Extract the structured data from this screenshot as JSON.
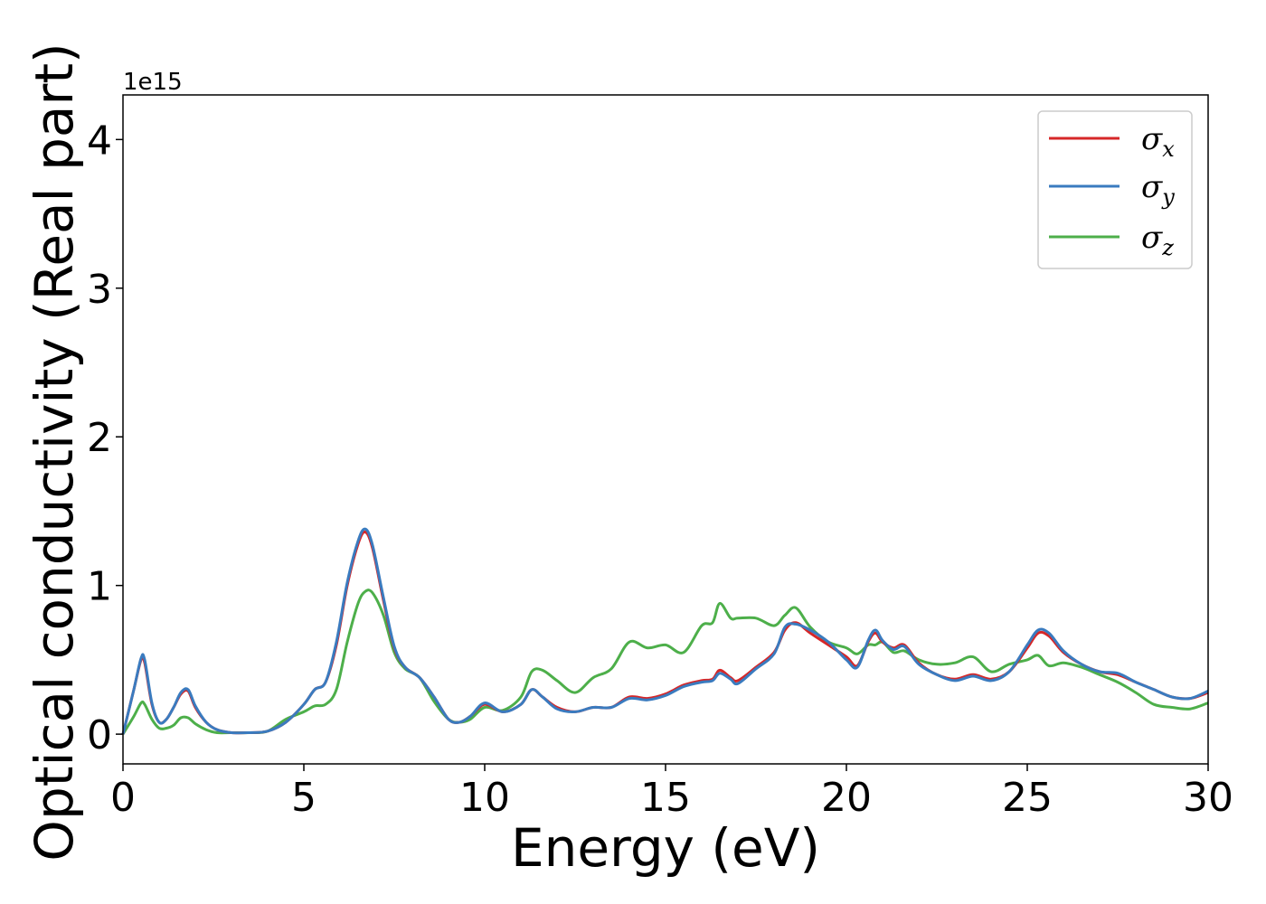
{
  "chart_data": {
    "type": "line",
    "title": "",
    "xlabel": "Energy (eV)",
    "ylabel": "Optical conductivity (Real part)",
    "y_offset_label": "1e15",
    "xlim": [
      0,
      30
    ],
    "ylim": [
      -0.2,
      4.3
    ],
    "x_ticks": [
      0,
      5,
      10,
      15,
      20,
      25,
      30
    ],
    "y_ticks": [
      0,
      1,
      2,
      3,
      4
    ],
    "grid": false,
    "legend_position": "top-right",
    "colors": {
      "sigma_x": "#d62728",
      "sigma_y": "#3a7bbf",
      "sigma_z": "#4daf4a"
    },
    "legend": [
      {
        "symbol": "σ",
        "sub": "x"
      },
      {
        "symbol": "σ",
        "sub": "y"
      },
      {
        "symbol": "σ",
        "sub": "z"
      }
    ],
    "x": [
      0,
      0.3,
      0.5,
      0.6,
      0.8,
      1.0,
      1.2,
      1.4,
      1.6,
      1.8,
      2.0,
      2.3,
      2.6,
      3.0,
      3.5,
      4.0,
      4.5,
      5.0,
      5.3,
      5.6,
      5.9,
      6.2,
      6.5,
      6.7,
      6.9,
      7.2,
      7.5,
      7.8,
      8.2,
      8.6,
      9.0,
      9.3,
      9.6,
      10.0,
      10.5,
      11.0,
      11.3,
      11.6,
      12.0,
      12.5,
      13.0,
      13.5,
      14.0,
      14.5,
      15.0,
      15.5,
      16.0,
      16.3,
      16.5,
      16.8,
      17.0,
      17.5,
      18.0,
      18.3,
      18.6,
      19.0,
      19.5,
      20.0,
      20.3,
      20.6,
      20.8,
      21.0,
      21.3,
      21.6,
      22.0,
      22.5,
      23.0,
      23.5,
      24.0,
      24.5,
      25.0,
      25.3,
      25.6,
      26.0,
      26.5,
      27.0,
      27.5,
      28.0,
      28.5,
      29.0,
      29.5,
      30.0
    ],
    "series": [
      {
        "key": "sigma_x",
        "values": [
          0,
          0.3,
          0.5,
          0.48,
          0.2,
          0.08,
          0.1,
          0.18,
          0.27,
          0.29,
          0.18,
          0.08,
          0.03,
          0.01,
          0.01,
          0.02,
          0.08,
          0.2,
          0.3,
          0.35,
          0.6,
          1.0,
          1.28,
          1.36,
          1.25,
          0.9,
          0.58,
          0.45,
          0.38,
          0.25,
          0.1,
          0.08,
          0.12,
          0.2,
          0.15,
          0.2,
          0.3,
          0.25,
          0.18,
          0.15,
          0.18,
          0.18,
          0.25,
          0.24,
          0.27,
          0.33,
          0.36,
          0.37,
          0.43,
          0.38,
          0.36,
          0.45,
          0.55,
          0.7,
          0.75,
          0.68,
          0.6,
          0.52,
          0.46,
          0.62,
          0.68,
          0.62,
          0.58,
          0.6,
          0.48,
          0.4,
          0.37,
          0.4,
          0.37,
          0.42,
          0.58,
          0.68,
          0.66,
          0.55,
          0.47,
          0.42,
          0.4,
          0.35,
          0.3,
          0.25,
          0.24,
          0.28
        ]
      },
      {
        "key": "sigma_y",
        "values": [
          0,
          0.3,
          0.51,
          0.5,
          0.21,
          0.08,
          0.1,
          0.18,
          0.28,
          0.3,
          0.19,
          0.08,
          0.03,
          0.01,
          0.01,
          0.02,
          0.08,
          0.2,
          0.3,
          0.35,
          0.62,
          1.02,
          1.3,
          1.38,
          1.27,
          0.92,
          0.59,
          0.45,
          0.38,
          0.25,
          0.1,
          0.08,
          0.12,
          0.21,
          0.15,
          0.2,
          0.3,
          0.25,
          0.17,
          0.15,
          0.18,
          0.18,
          0.24,
          0.23,
          0.26,
          0.32,
          0.35,
          0.36,
          0.41,
          0.37,
          0.34,
          0.44,
          0.54,
          0.72,
          0.74,
          0.7,
          0.62,
          0.5,
          0.45,
          0.63,
          0.7,
          0.63,
          0.57,
          0.59,
          0.47,
          0.4,
          0.36,
          0.39,
          0.36,
          0.42,
          0.6,
          0.7,
          0.68,
          0.56,
          0.47,
          0.42,
          0.41,
          0.35,
          0.3,
          0.25,
          0.24,
          0.29
        ]
      },
      {
        "key": "sigma_z",
        "values": [
          0,
          0.12,
          0.21,
          0.2,
          0.1,
          0.04,
          0.04,
          0.06,
          0.11,
          0.11,
          0.07,
          0.03,
          0.01,
          0.01,
          0.01,
          0.02,
          0.1,
          0.15,
          0.19,
          0.2,
          0.3,
          0.62,
          0.88,
          0.96,
          0.95,
          0.8,
          0.55,
          0.44,
          0.38,
          0.22,
          0.1,
          0.08,
          0.1,
          0.18,
          0.16,
          0.25,
          0.42,
          0.43,
          0.36,
          0.28,
          0.38,
          0.44,
          0.62,
          0.58,
          0.6,
          0.55,
          0.73,
          0.75,
          0.88,
          0.78,
          0.78,
          0.78,
          0.73,
          0.8,
          0.85,
          0.72,
          0.62,
          0.58,
          0.54,
          0.6,
          0.6,
          0.62,
          0.55,
          0.56,
          0.5,
          0.47,
          0.48,
          0.52,
          0.42,
          0.47,
          0.5,
          0.53,
          0.46,
          0.48,
          0.45,
          0.4,
          0.35,
          0.28,
          0.2,
          0.18,
          0.17,
          0.21
        ]
      }
    ]
  }
}
